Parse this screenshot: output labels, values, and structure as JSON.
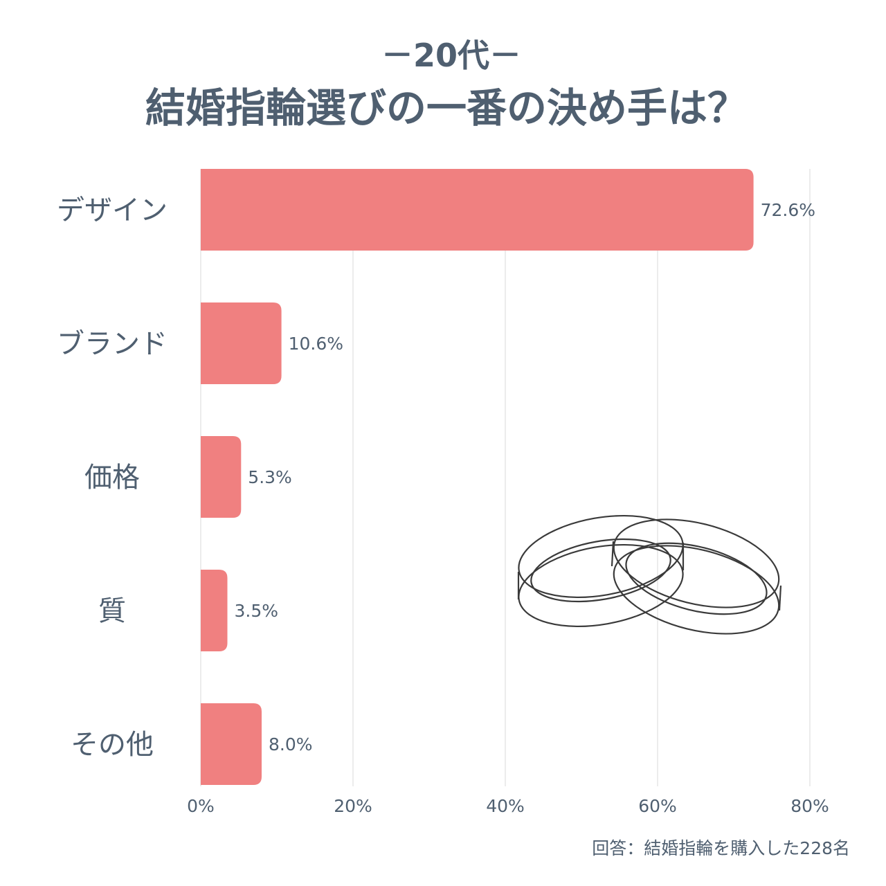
{
  "subtitle": "－20代－",
  "footnote": "回答：結婚指輪を購入した228名",
  "colors": {
    "bar": "#f08080",
    "text": "#4f5f70",
    "grid": "#e6e6e6"
  },
  "icon": "wedding-rings-icon",
  "chart_data": {
    "type": "bar",
    "orientation": "horizontal",
    "title": "結婚指輪選びの一番の決め手は？",
    "categories": [
      "デザイン",
      "ブランド",
      "価格",
      "質",
      "その他"
    ],
    "values": [
      72.6,
      10.6,
      5.3,
      3.5,
      8.0
    ],
    "value_labels": [
      "72.6%",
      "10.6%",
      "5.3%",
      "3.5%",
      "8.0%"
    ],
    "xlim": [
      0,
      80
    ],
    "xticks": [
      0,
      20,
      40,
      60,
      80
    ],
    "xtick_labels": [
      "0%",
      "20%",
      "40%",
      "60%",
      "80%"
    ],
    "grid": true,
    "legend": "none"
  }
}
